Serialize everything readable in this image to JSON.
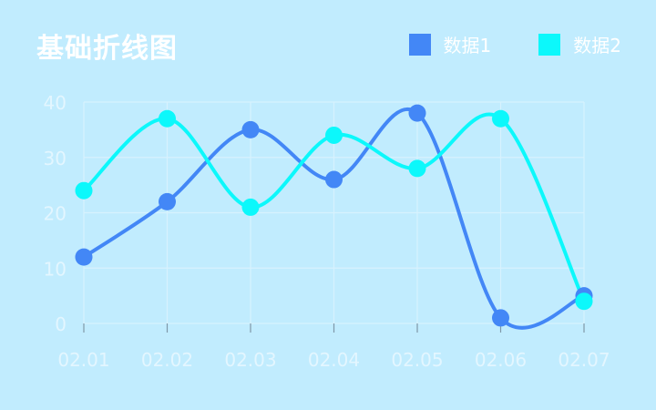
{
  "colors": {
    "background": "#c1ecfe",
    "series1": "#4387f6",
    "series2": "#0cf8fb",
    "grid": "#d7f2fe",
    "axis_text": "#e3f6ff"
  },
  "chart_data": {
    "type": "line",
    "title": "基础折线图",
    "xlabel": "",
    "ylabel": "",
    "categories": [
      "02.01",
      "02.02",
      "02.03",
      "02.04",
      "02.05",
      "02.06",
      "02.07"
    ],
    "ylim": [
      0,
      40
    ],
    "yticks": [
      0,
      10,
      20,
      30,
      40
    ],
    "grid": true,
    "smooth": true,
    "legend_position": "top-right",
    "series": [
      {
        "name": "数据1",
        "color": "#4387f6",
        "values": [
          12,
          22,
          35,
          26,
          38,
          1,
          5
        ]
      },
      {
        "name": "数据2",
        "color": "#0cf8fb",
        "values": [
          24,
          37,
          21,
          34,
          28,
          37,
          4
        ]
      }
    ]
  }
}
